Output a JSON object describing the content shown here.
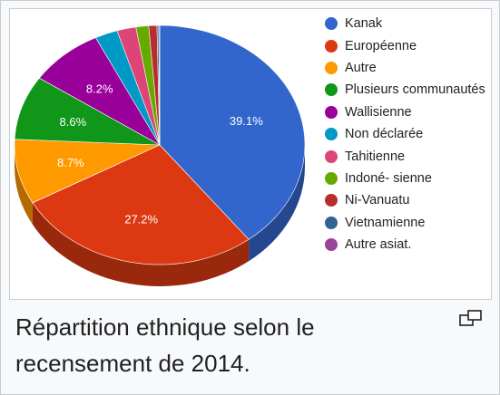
{
  "chart_data": {
    "type": "pie",
    "style": "3d",
    "categories": [
      "Kanak",
      "Européenne",
      "Autre",
      "Plusieurs communautés",
      "Wallisienne",
      "Non déclarée",
      "Tahitienne",
      "Indoné- sienne",
      "Ni-Vanuatu",
      "Vietnamienne",
      "Autre asiat."
    ],
    "values": [
      39.1,
      27.2,
      8.7,
      8.6,
      8.2,
      2.5,
      2.1,
      1.4,
      0.9,
      0.2,
      0.1
    ],
    "data_labels": [
      "39.1%",
      "27.2%",
      "8.7%",
      "8.6%",
      "8.2%",
      "",
      "",
      "",
      "",
      "",
      ""
    ],
    "colors": [
      "#3366cc",
      "#dc3912",
      "#ff9900",
      "#109618",
      "#990099",
      "#0099c6",
      "#dd4477",
      "#66aa00",
      "#b82e2e",
      "#316395",
      "#994499"
    ],
    "legend_position": "right",
    "title": ""
  },
  "caption": {
    "text": "Répartition ethnique selon le recensement de 2014."
  }
}
